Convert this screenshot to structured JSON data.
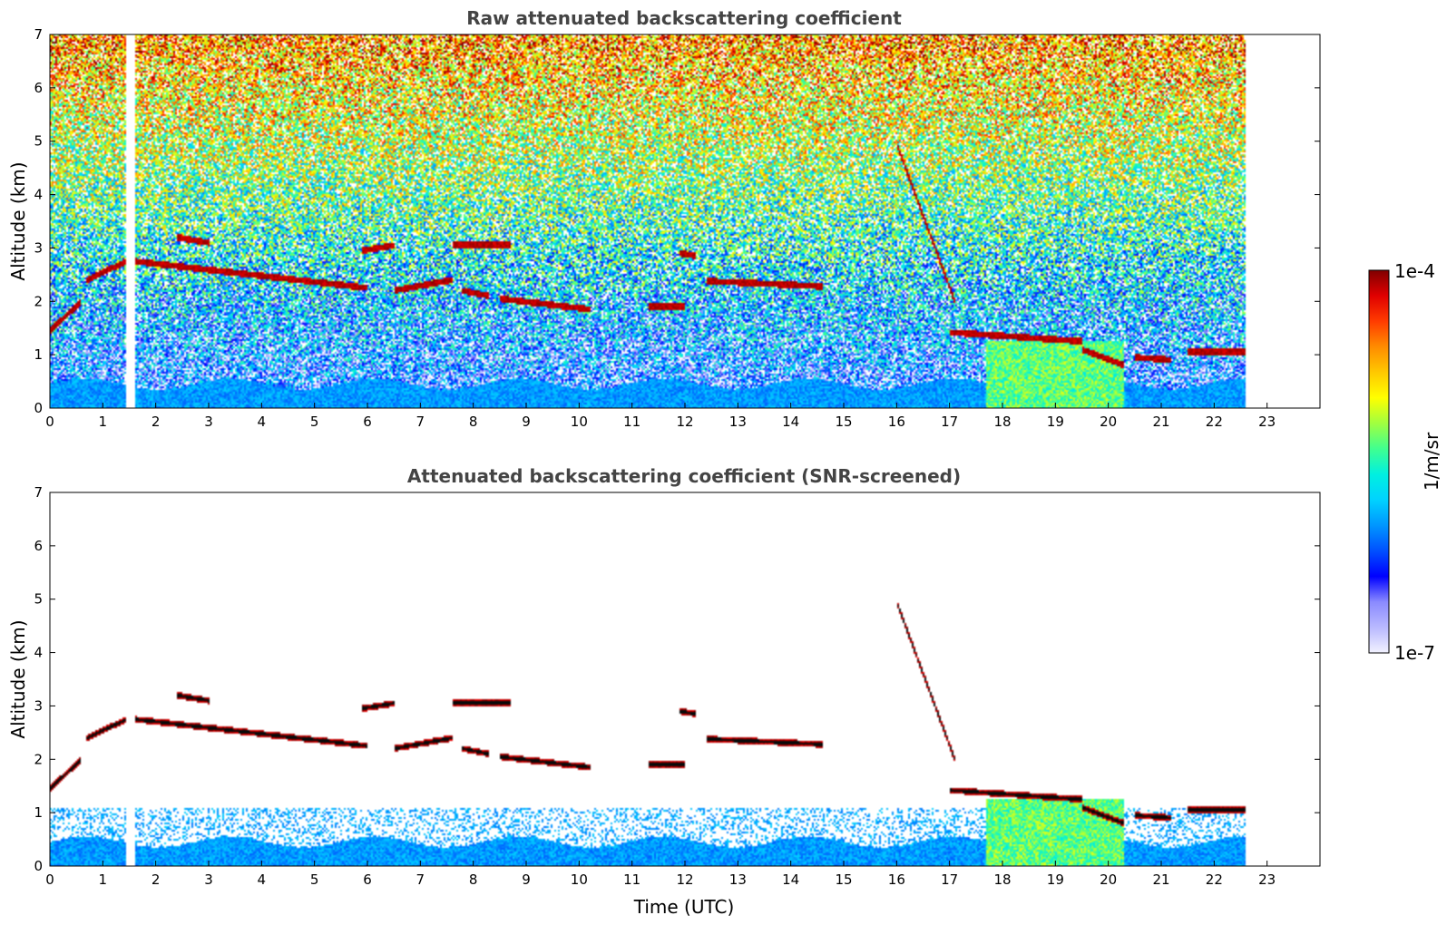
{
  "colormap": [
    "#f2f2ff",
    "#b9b9ff",
    "#8a8aff",
    "#0000ff",
    "#0050ff",
    "#0096ff",
    "#00d2ff",
    "#00f0e0",
    "#40ff90",
    "#a0ff40",
    "#ffff00",
    "#ffc800",
    "#ff8c00",
    "#ff3c00",
    "#e00000",
    "#800000"
  ],
  "colorbar": {
    "top_label": "1e-4",
    "bottom_label": "1e-7",
    "unit_label": "1/m/sr",
    "min_exp": -7,
    "max_exp": -4
  },
  "chart_data": [
    {
      "type": "heatmap",
      "title": "Raw attenuated backscattering coefficient",
      "xlabel": "",
      "ylabel": "Altitude (km)",
      "xlim": [
        0,
        24
      ],
      "ylim": [
        0,
        7
      ],
      "xticks": [
        "0",
        "1",
        "2",
        "3",
        "4",
        "5",
        "6",
        "7",
        "8",
        "9",
        "10",
        "11",
        "12",
        "13",
        "14",
        "15",
        "16",
        "17",
        "18",
        "19",
        "20",
        "21",
        "22",
        "23"
      ],
      "yticks": [
        "0",
        "1",
        "2",
        "3",
        "4",
        "5",
        "6",
        "7"
      ],
      "data_end_time": 22.6,
      "missing_interval": [
        1.45,
        1.6
      ],
      "screened": false,
      "cloud_layers": [
        {
          "t": [
            0.0,
            0.6
          ],
          "alt": [
            1.45,
            2.0
          ]
        },
        {
          "t": [
            0.7,
            1.45
          ],
          "alt": [
            2.4,
            2.75
          ]
        },
        {
          "t": [
            1.6,
            6.0
          ],
          "alt": [
            2.75,
            2.25
          ]
        },
        {
          "t": [
            2.4,
            3.0
          ],
          "alt": [
            3.2,
            3.1
          ]
        },
        {
          "t": [
            5.9,
            6.5
          ],
          "alt": [
            2.95,
            3.05
          ]
        },
        {
          "t": [
            7.6,
            8.7
          ],
          "alt": [
            3.05,
            3.05
          ]
        },
        {
          "t": [
            6.5,
            7.6
          ],
          "alt": [
            2.2,
            2.4
          ]
        },
        {
          "t": [
            7.8,
            8.3
          ],
          "alt": [
            2.2,
            2.1
          ]
        },
        {
          "t": [
            8.5,
            10.2
          ],
          "alt": [
            2.05,
            1.85
          ]
        },
        {
          "t": [
            11.3,
            12.0
          ],
          "alt": [
            1.9,
            1.9
          ]
        },
        {
          "t": [
            12.4,
            14.6
          ],
          "alt": [
            2.38,
            2.28
          ]
        },
        {
          "t": [
            11.9,
            12.2
          ],
          "alt": [
            2.9,
            2.85
          ]
        },
        {
          "t": [
            16.0,
            17.1
          ],
          "alt": [
            4.95,
            2.0
          ]
        },
        {
          "t": [
            17.0,
            19.5
          ],
          "alt": [
            1.42,
            1.25
          ]
        },
        {
          "t": [
            19.5,
            20.3
          ],
          "alt": [
            1.1,
            0.8
          ]
        },
        {
          "t": [
            20.5,
            21.2
          ],
          "alt": [
            0.95,
            0.9
          ]
        },
        {
          "t": [
            21.5,
            22.6
          ],
          "alt": [
            1.05,
            1.05
          ]
        }
      ]
    },
    {
      "type": "heatmap",
      "title": "Attenuated backscattering coefficient (SNR-screened)",
      "xlabel": "Time (UTC)",
      "ylabel": "Altitude (km)",
      "xlim": [
        0,
        24
      ],
      "ylim": [
        0,
        7
      ],
      "xticks": [
        "0",
        "1",
        "2",
        "3",
        "4",
        "5",
        "6",
        "7",
        "8",
        "9",
        "10",
        "11",
        "12",
        "13",
        "14",
        "15",
        "16",
        "17",
        "18",
        "19",
        "20",
        "21",
        "22",
        "23"
      ],
      "yticks": [
        "0",
        "1",
        "2",
        "3",
        "4",
        "5",
        "6",
        "7"
      ],
      "data_end_time": 22.6,
      "missing_interval": [
        1.45,
        1.6
      ],
      "screened": true,
      "cloud_layers": [
        {
          "t": [
            0.0,
            0.6
          ],
          "alt": [
            1.45,
            2.0
          ]
        },
        {
          "t": [
            0.7,
            1.45
          ],
          "alt": [
            2.4,
            2.75
          ]
        },
        {
          "t": [
            1.6,
            6.0
          ],
          "alt": [
            2.75,
            2.25
          ]
        },
        {
          "t": [
            2.4,
            3.0
          ],
          "alt": [
            3.2,
            3.1
          ]
        },
        {
          "t": [
            5.9,
            6.5
          ],
          "alt": [
            2.95,
            3.05
          ]
        },
        {
          "t": [
            7.6,
            8.7
          ],
          "alt": [
            3.05,
            3.05
          ]
        },
        {
          "t": [
            6.5,
            7.6
          ],
          "alt": [
            2.2,
            2.4
          ]
        },
        {
          "t": [
            7.8,
            8.3
          ],
          "alt": [
            2.2,
            2.1
          ]
        },
        {
          "t": [
            8.5,
            10.2
          ],
          "alt": [
            2.05,
            1.85
          ]
        },
        {
          "t": [
            11.3,
            12.0
          ],
          "alt": [
            1.9,
            1.9
          ]
        },
        {
          "t": [
            12.4,
            14.6
          ],
          "alt": [
            2.38,
            2.28
          ]
        },
        {
          "t": [
            11.9,
            12.2
          ],
          "alt": [
            2.9,
            2.85
          ]
        },
        {
          "t": [
            16.0,
            17.1
          ],
          "alt": [
            4.95,
            2.0
          ]
        },
        {
          "t": [
            17.0,
            19.5
          ],
          "alt": [
            1.42,
            1.25
          ]
        },
        {
          "t": [
            19.5,
            20.3
          ],
          "alt": [
            1.1,
            0.8
          ]
        },
        {
          "t": [
            20.5,
            21.2
          ],
          "alt": [
            0.95,
            0.9
          ]
        },
        {
          "t": [
            21.5,
            22.6
          ],
          "alt": [
            1.05,
            1.05
          ]
        }
      ]
    }
  ]
}
